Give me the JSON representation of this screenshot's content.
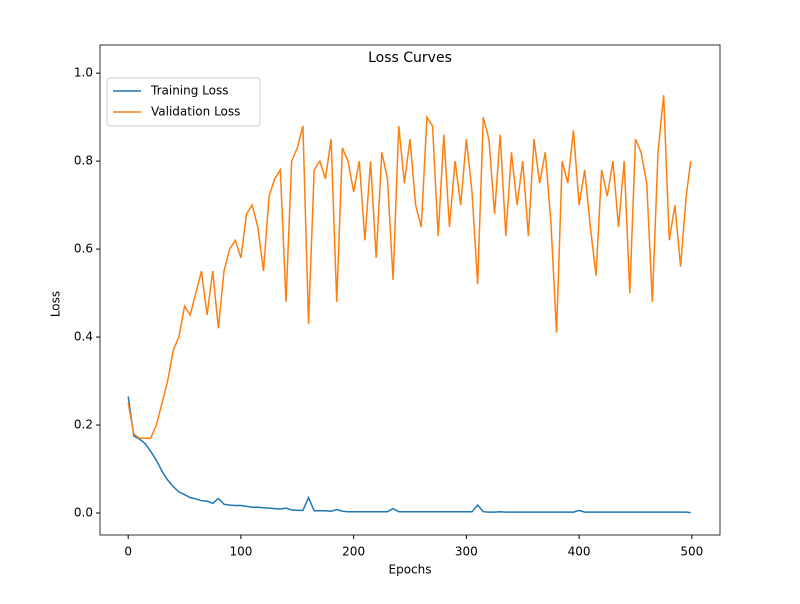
{
  "chart_data": {
    "type": "line",
    "title": "Loss Curves",
    "x_label": "Epochs",
    "y_label": "Loss",
    "x": [
      0,
      5,
      10,
      15,
      20,
      25,
      30,
      35,
      40,
      45,
      50,
      55,
      60,
      65,
      70,
      75,
      80,
      85,
      90,
      95,
      100,
      105,
      110,
      115,
      120,
      125,
      130,
      135,
      140,
      145,
      150,
      155,
      160,
      165,
      170,
      175,
      180,
      185,
      190,
      195,
      200,
      205,
      210,
      215,
      220,
      225,
      230,
      235,
      240,
      245,
      250,
      255,
      260,
      265,
      270,
      275,
      280,
      285,
      290,
      295,
      300,
      305,
      310,
      315,
      320,
      325,
      330,
      335,
      340,
      345,
      350,
      355,
      360,
      365,
      370,
      375,
      380,
      385,
      390,
      395,
      400,
      405,
      410,
      415,
      420,
      425,
      430,
      435,
      440,
      445,
      450,
      455,
      460,
      465,
      470,
      475,
      480,
      485,
      490,
      495,
      499
    ],
    "series": [
      {
        "name": "Training Loss",
        "color": "#1f77b4",
        "values": [
          0.265,
          0.175,
          0.168,
          0.158,
          0.14,
          0.12,
          0.095,
          0.075,
          0.06,
          0.048,
          0.042,
          0.035,
          0.032,
          0.028,
          0.027,
          0.022,
          0.033,
          0.02,
          0.018,
          0.017,
          0.017,
          0.015,
          0.013,
          0.013,
          0.012,
          0.011,
          0.01,
          0.009,
          0.011,
          0.007,
          0.006,
          0.006,
          0.035,
          0.005,
          0.005,
          0.005,
          0.004,
          0.008,
          0.004,
          0.003,
          0.003,
          0.003,
          0.003,
          0.003,
          0.003,
          0.003,
          0.003,
          0.01,
          0.003,
          0.003,
          0.003,
          0.003,
          0.003,
          0.003,
          0.003,
          0.003,
          0.003,
          0.003,
          0.003,
          0.003,
          0.003,
          0.003,
          0.018,
          0.003,
          0.002,
          0.002,
          0.003,
          0.002,
          0.002,
          0.002,
          0.002,
          0.002,
          0.002,
          0.002,
          0.002,
          0.002,
          0.002,
          0.002,
          0.002,
          0.002,
          0.006,
          0.002,
          0.002,
          0.002,
          0.002,
          0.002,
          0.002,
          0.002,
          0.002,
          0.002,
          0.002,
          0.002,
          0.002,
          0.002,
          0.002,
          0.002,
          0.002,
          0.002,
          0.002,
          0.002,
          0.001
        ]
      },
      {
        "name": "Validation Loss",
        "color": "#ff7f0e",
        "values": [
          0.25,
          0.18,
          0.17,
          0.17,
          0.17,
          0.2,
          0.25,
          0.3,
          0.37,
          0.4,
          0.47,
          0.45,
          0.5,
          0.55,
          0.45,
          0.55,
          0.42,
          0.55,
          0.6,
          0.62,
          0.58,
          0.68,
          0.7,
          0.65,
          0.55,
          0.72,
          0.76,
          0.78,
          0.48,
          0.8,
          0.83,
          0.88,
          0.43,
          0.78,
          0.8,
          0.76,
          0.85,
          0.48,
          0.83,
          0.8,
          0.73,
          0.8,
          0.62,
          0.8,
          0.58,
          0.82,
          0.76,
          0.53,
          0.88,
          0.75,
          0.85,
          0.7,
          0.65,
          0.9,
          0.88,
          0.63,
          0.86,
          0.65,
          0.8,
          0.7,
          0.85,
          0.73,
          0.52,
          0.9,
          0.85,
          0.68,
          0.86,
          0.63,
          0.82,
          0.7,
          0.8,
          0.63,
          0.85,
          0.75,
          0.82,
          0.66,
          0.41,
          0.8,
          0.75,
          0.87,
          0.7,
          0.78,
          0.65,
          0.54,
          0.78,
          0.72,
          0.8,
          0.65,
          0.8,
          0.5,
          0.85,
          0.82,
          0.75,
          0.48,
          0.82,
          0.95,
          0.62,
          0.7,
          0.56,
          0.72,
          0.8
        ]
      }
    ],
    "xlim": [
      -25,
      525
    ],
    "ylim": [
      -0.05,
      1.064
    ],
    "xticks": [
      0,
      100,
      200,
      300,
      400,
      500
    ],
    "yticks": [
      {
        "value": 0,
        "label": "0.0"
      },
      {
        "value": 0.2,
        "label": "0.2"
      },
      {
        "value": 0.4,
        "label": "0.4"
      },
      {
        "value": 0.6,
        "label": "0.6"
      },
      {
        "value": 0.8,
        "label": "0.8"
      },
      {
        "value": 1,
        "label": "1.0"
      }
    ],
    "legend": "upper left"
  }
}
